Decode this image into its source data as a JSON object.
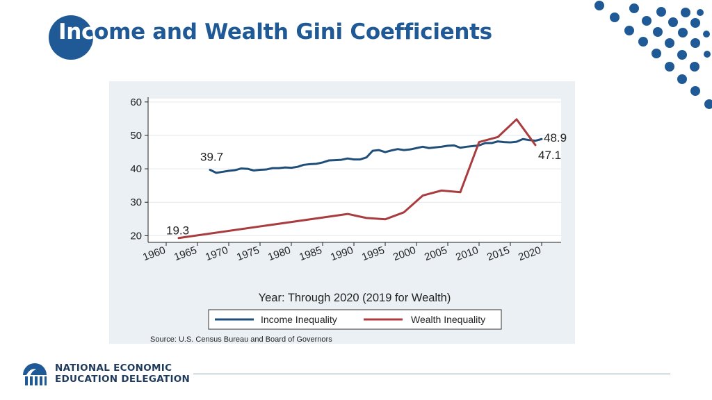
{
  "slide": {
    "title_inc": "Inc",
    "title_rest": "ome and Wealth Gini Coefficients",
    "logo_line1": "NATIONAL ECONOMIC",
    "logo_line2": "EDUCATION DELEGATION",
    "logo_icon": "building-columns-icon",
    "accent_color": "#1f5a96"
  },
  "chart_data": {
    "type": "line",
    "xlabel": "Year: Through 2020 (2019 for Wealth)",
    "source": "Source: U.S. Census Bureau and Board of Governors",
    "xlim": [
      1960,
      2020
    ],
    "ylim": [
      20,
      60
    ],
    "x_ticks": [
      1960,
      1965,
      1970,
      1975,
      1980,
      1985,
      1990,
      1995,
      2000,
      2005,
      2010,
      2015,
      2020
    ],
    "y_ticks": [
      20,
      30,
      40,
      50,
      60
    ],
    "grid": true,
    "legend_position": "bottom",
    "series": [
      {
        "name": "Income Inequality",
        "color": "#1f4e79",
        "x": [
          1967,
          1968,
          1969,
          1970,
          1971,
          1972,
          1973,
          1974,
          1975,
          1976,
          1977,
          1978,
          1979,
          1980,
          1981,
          1982,
          1983,
          1984,
          1985,
          1986,
          1987,
          1988,
          1989,
          1990,
          1991,
          1992,
          1993,
          1994,
          1995,
          1996,
          1997,
          1998,
          1999,
          2000,
          2001,
          2002,
          2003,
          2004,
          2005,
          2006,
          2007,
          2008,
          2009,
          2010,
          2011,
          2012,
          2013,
          2014,
          2015,
          2016,
          2017,
          2018,
          2019,
          2020
        ],
        "values": [
          39.7,
          38.8,
          39.1,
          39.4,
          39.6,
          40.1,
          40.0,
          39.5,
          39.7,
          39.8,
          40.2,
          40.2,
          40.4,
          40.3,
          40.6,
          41.2,
          41.4,
          41.5,
          41.9,
          42.5,
          42.6,
          42.7,
          43.1,
          42.8,
          42.8,
          43.4,
          45.4,
          45.6,
          45.0,
          45.5,
          45.9,
          45.6,
          45.8,
          46.2,
          46.6,
          46.2,
          46.4,
          46.6,
          46.9,
          47.0,
          46.3,
          46.6,
          46.8,
          47.0,
          47.7,
          47.7,
          48.2,
          48.0,
          47.9,
          48.1,
          48.9,
          48.6,
          48.4,
          48.9
        ],
        "start_label": "39.7",
        "end_label": "48.9"
      },
      {
        "name": "Wealth Inequality",
        "color": "#a83c3f",
        "x": [
          1962,
          1989,
          1992,
          1995,
          1998,
          2001,
          2004,
          2007,
          2010,
          2013,
          2016,
          2019
        ],
        "values": [
          19.3,
          26.5,
          25.3,
          24.9,
          27.0,
          32.0,
          33.5,
          33.0,
          48.0,
          49.5,
          54.8,
          47.1
        ],
        "start_label": "19.3",
        "end_label": "47.1"
      }
    ]
  }
}
